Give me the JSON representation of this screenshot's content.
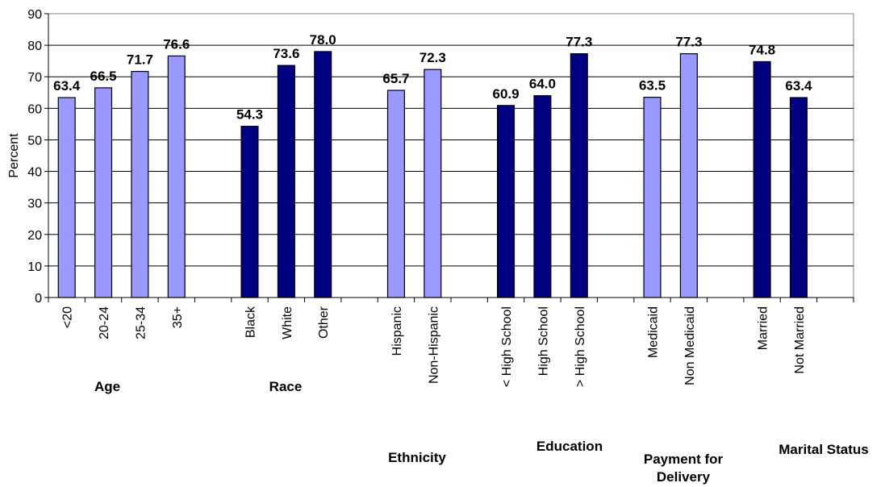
{
  "chart_data": {
    "type": "bar",
    "ylabel": "Percent",
    "ylim": [
      0,
      90
    ],
    "yticks": [
      "0",
      "10",
      "20",
      "30",
      "40",
      "50",
      "60",
      "70",
      "80",
      "90"
    ],
    "colors": {
      "light": "#9999ff",
      "dark": "#000080"
    },
    "slots": [
      {
        "category": "<20",
        "value": 63.4,
        "label": "63.4",
        "color": "light"
      },
      {
        "category": "20-24",
        "value": 66.5,
        "label": "66.5",
        "color": "light"
      },
      {
        "category": "25-34",
        "value": 71.7,
        "label": "71.7",
        "color": "light"
      },
      {
        "category": "35+",
        "value": 76.6,
        "label": "76.6",
        "color": "light"
      },
      {
        "category": "",
        "value": null
      },
      {
        "category": "Black",
        "value": 54.3,
        "label": "54.3",
        "color": "dark"
      },
      {
        "category": "White",
        "value": 73.6,
        "label": "73.6",
        "color": "dark"
      },
      {
        "category": "Other",
        "value": 78.0,
        "label": "78.0",
        "color": "dark"
      },
      {
        "category": "",
        "value": null
      },
      {
        "category": "Hispanic",
        "value": 65.7,
        "label": "65.7",
        "color": "light"
      },
      {
        "category": "Non-Hispanic",
        "value": 72.3,
        "label": "72.3",
        "color": "light"
      },
      {
        "category": "",
        "value": null
      },
      {
        "category": "< High School",
        "value": 60.9,
        "label": "60.9",
        "color": "dark"
      },
      {
        "category": "High School",
        "value": 64.0,
        "label": "64.0",
        "color": "dark"
      },
      {
        "category": "> High School",
        "value": 77.3,
        "label": "77.3",
        "color": "dark"
      },
      {
        "category": "",
        "value": null
      },
      {
        "category": "Medicaid",
        "value": 63.5,
        "label": "63.5",
        "color": "light"
      },
      {
        "category": "Non Medicaid",
        "value": 77.3,
        "label": "77.3",
        "color": "light"
      },
      {
        "category": "",
        "value": null
      },
      {
        "category": "Married",
        "value": 74.8,
        "label": "74.8",
        "color": "dark"
      },
      {
        "category": "Not Married",
        "value": 63.4,
        "label": "63.4",
        "color": "dark"
      },
      {
        "category": "",
        "value": null
      }
    ],
    "groups": [
      {
        "name": "Age",
        "lines": [
          "Age"
        ]
      },
      {
        "name": "Race",
        "lines": [
          "Race"
        ]
      },
      {
        "name": "Ethnicity",
        "lines": [
          "Ethnicity"
        ]
      },
      {
        "name": "Education",
        "lines": [
          "Education"
        ]
      },
      {
        "name": "Payment for Delivery",
        "lines": [
          "Payment for",
          "Delivery"
        ]
      },
      {
        "name": "Marital Status",
        "lines": [
          "Marital Status"
        ]
      }
    ]
  }
}
